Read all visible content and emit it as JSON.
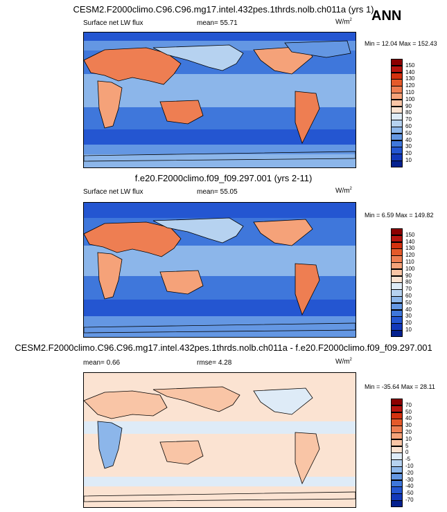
{
  "season": "ANN",
  "panels": [
    {
      "title": "CESM2.F2000climo.C96.C96.mg17.intel.432pes.1thrds.nolb.ch011a (yrs 1)",
      "left_label": "Surface net LW flux",
      "stat_label": "mean=  55.71",
      "units": "W/m",
      "units_exp": "2",
      "minmax": "Min =  12.04 Max = 152.43",
      "colorbar_labels": [
        "150",
        "140",
        "130",
        "120",
        "110",
        "100",
        "90",
        "80",
        "70",
        "60",
        "50",
        "40",
        "30",
        "20",
        "10"
      ],
      "colors": [
        "#8b0000",
        "#b8150f",
        "#d4310f",
        "#e45a2a",
        "#ee7e52",
        "#f5a279",
        "#f9c5a6",
        "#fbe3d2",
        "#deebf7",
        "#b6d2f0",
        "#8cb6ea",
        "#6497e3",
        "#3f77db",
        "#2456d1",
        "#1238ba",
        "#04218f"
      ]
    },
    {
      "title": "f.e20.F2000climo.f09_f09.297.001 (yrs 2-11)",
      "left_label": "Surface net LW flux",
      "stat_label": "mean=  55.05",
      "units": "W/m",
      "units_exp": "2",
      "minmax": "Min =   6.59 Max = 149.82",
      "colorbar_labels": [
        "150",
        "140",
        "130",
        "120",
        "110",
        "100",
        "90",
        "80",
        "70",
        "60",
        "50",
        "40",
        "30",
        "20",
        "10"
      ],
      "colors": [
        "#8b0000",
        "#b8150f",
        "#d4310f",
        "#e45a2a",
        "#ee7e52",
        "#f5a279",
        "#f9c5a6",
        "#fbe3d2",
        "#deebf7",
        "#b6d2f0",
        "#8cb6ea",
        "#6497e3",
        "#3f77db",
        "#2456d1",
        "#1238ba",
        "#04218f"
      ]
    },
    {
      "title": "CESM2.F2000climo.C96.C96.mg17.intel.432pes.1thrds.nolb.ch011a - f.e20.F2000climo.f09_f09.297.001",
      "left_label": "mean=   0.66",
      "stat_label": "rmse=   4.28",
      "units": "W/m",
      "units_exp": "2",
      "minmax": "Min = -35.64 Max =  28.11",
      "colorbar_labels": [
        "70",
        "50",
        "40",
        "30",
        "20",
        "10",
        "5",
        "0",
        "-5",
        "-10",
        "-20",
        "-30",
        "-40",
        "-50",
        "-70"
      ],
      "colors": [
        "#8b0000",
        "#b8150f",
        "#d4310f",
        "#e45a2a",
        "#ee7e52",
        "#f5a279",
        "#f9c5a6",
        "#fbe3d2",
        "#deebf7",
        "#b6d2f0",
        "#8cb6ea",
        "#6497e3",
        "#3f77db",
        "#2456d1",
        "#1238ba",
        "#04218f"
      ]
    }
  ],
  "chart_data": [
    {
      "type": "heatmap",
      "title": "CESM2.F2000climo.C96.C96.mg17.intel.432pes.1thrds.nolb.ch011a (yrs 1)",
      "variable": "Surface net LW flux",
      "units": "W/m2",
      "mean": 55.71,
      "min": 12.04,
      "max": 152.43,
      "levels": [
        10,
        20,
        30,
        40,
        50,
        60,
        70,
        80,
        90,
        100,
        110,
        120,
        130,
        140,
        150
      ]
    },
    {
      "type": "heatmap",
      "title": "f.e20.F2000climo.f09_f09.297.001 (yrs 2-11)",
      "variable": "Surface net LW flux",
      "units": "W/m2",
      "mean": 55.05,
      "min": 6.59,
      "max": 149.82,
      "levels": [
        10,
        20,
        30,
        40,
        50,
        60,
        70,
        80,
        90,
        100,
        110,
        120,
        130,
        140,
        150
      ]
    },
    {
      "type": "heatmap",
      "title": "CESM2.F2000climo.C96.C96.mg17.intel.432pes.1thrds.nolb.ch011a - f.e20.F2000climo.f09_f09.297.001",
      "units": "W/m2",
      "mean": 0.66,
      "rmse": 4.28,
      "min": -35.64,
      "max": 28.11,
      "levels": [
        -70,
        -50,
        -40,
        -30,
        -20,
        -10,
        -5,
        0,
        5,
        10,
        20,
        30,
        40,
        50,
        70
      ]
    }
  ]
}
